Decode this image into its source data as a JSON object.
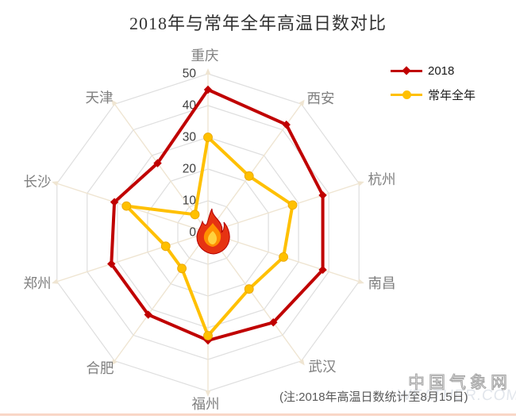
{
  "title": "2018年与常年全年高温日数对比",
  "note": "(注:2018年高温日数统计至8月15日)",
  "watermark": {
    "main": "中国气象网",
    "sub": "WEATHER.COM.CN"
  },
  "legend": {
    "items": [
      {
        "label": "2018",
        "color": "#C00000",
        "marker": "diamond"
      },
      {
        "label": "常年全年",
        "color": "#FFC000",
        "marker": "circle"
      }
    ]
  },
  "colors": {
    "series_2018": "#C00000",
    "series_normal": "#FFC000",
    "ring": "#DEDEDE",
    "spoke": "#EFE5D2",
    "city_label": "#7F7F7F",
    "tick_label": "#3F3F3F",
    "flame_outer": "#E63312",
    "flame_mid": "#FF8F00",
    "flame_core": "#FFD23F"
  },
  "chart_data": {
    "type": "radar",
    "categories": [
      "重庆",
      "西安",
      "杭州",
      "南昌",
      "武汉",
      "福州",
      "合肥",
      "郑州",
      "长沙",
      "天津"
    ],
    "series": [
      {
        "name": "2018",
        "color": "#C00000",
        "marker": "diamond",
        "values": [
          45,
          42,
          38,
          38,
          35,
          34,
          32,
          32,
          31,
          27
        ]
      },
      {
        "name": "常年全年",
        "color": "#FFC000",
        "marker": "circle",
        "values": [
          30,
          22,
          28,
          25,
          22,
          32.5,
          14,
          14,
          27,
          7
        ]
      }
    ],
    "r_ticks": [
      0,
      10,
      20,
      30,
      40,
      50
    ],
    "r_max": 50,
    "start": "top",
    "direction": "clockwise",
    "grid": "decagon-rings-with-radial-arrow-spokes",
    "legend_position": "top-right",
    "center_icon": "flame"
  }
}
